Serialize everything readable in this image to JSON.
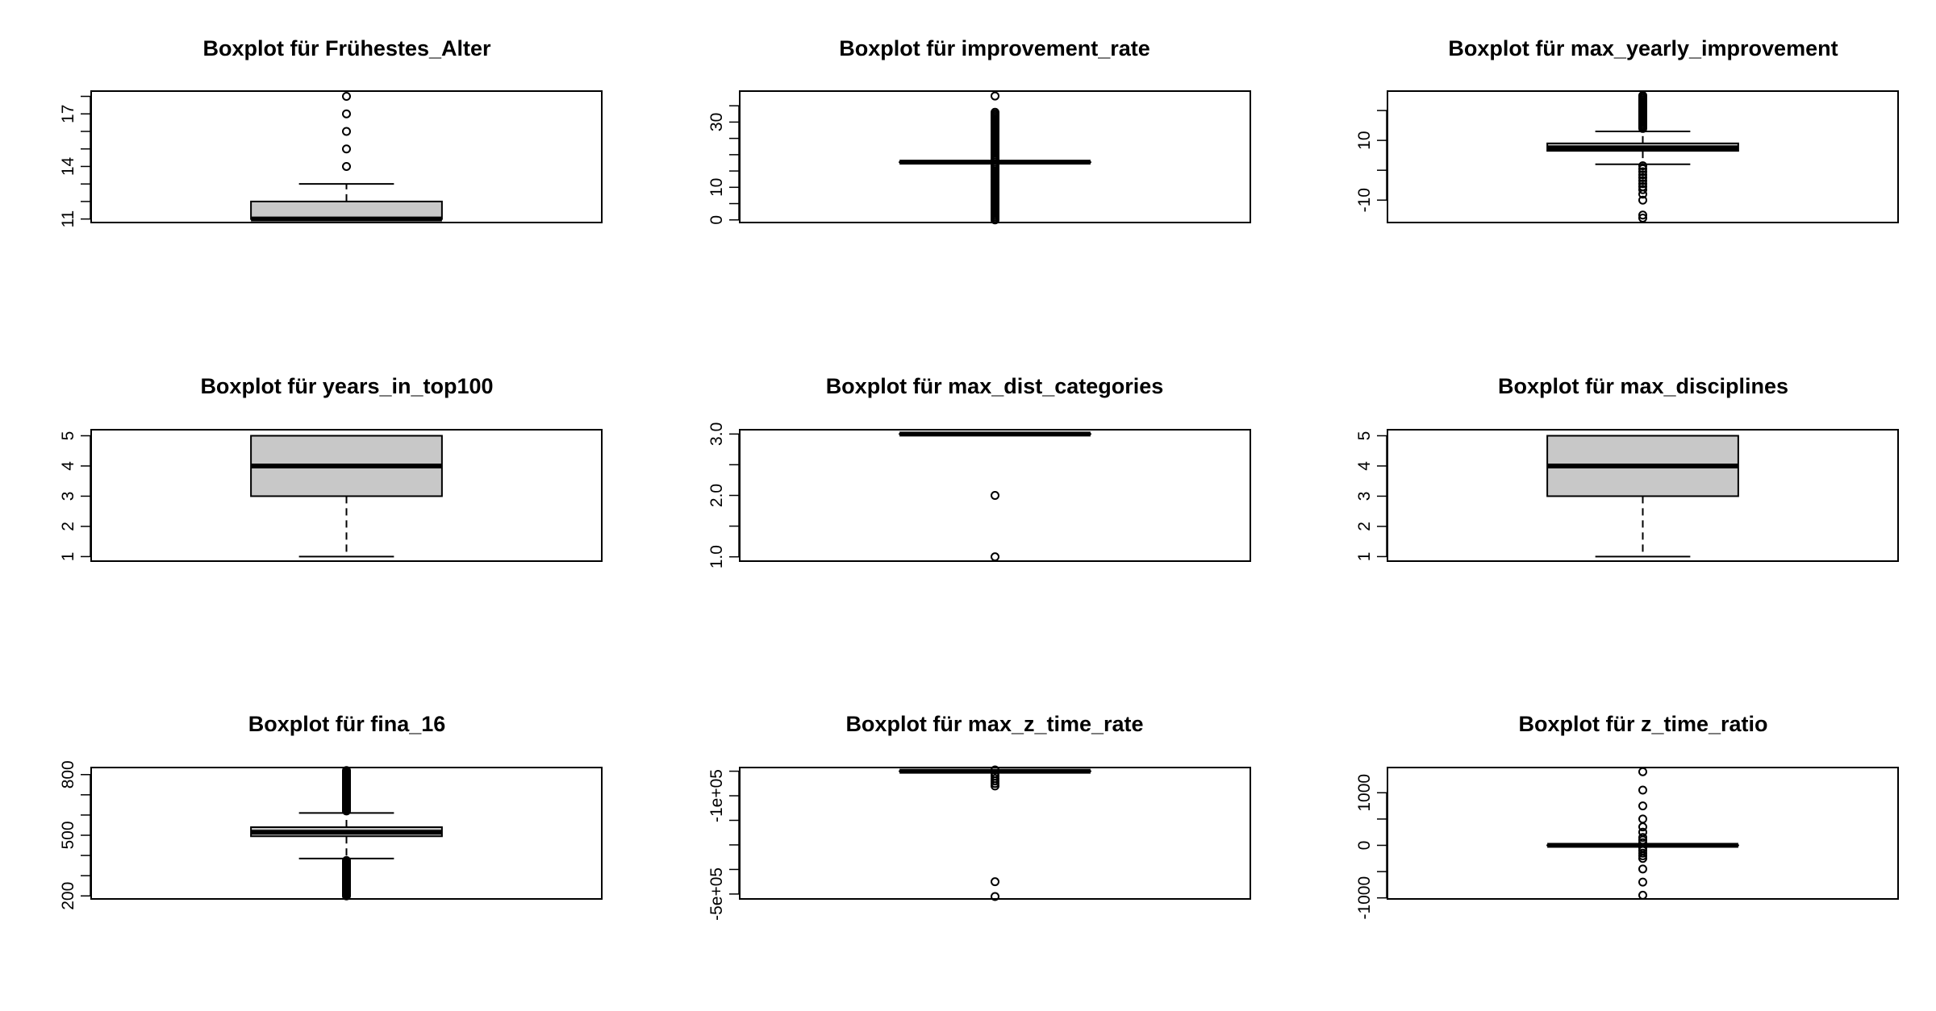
{
  "figure": {
    "background": "#ffffff",
    "box_fill": "#c8c8c8",
    "stroke": "#000000"
  },
  "chart_data": [
    {
      "type": "boxplot",
      "title": "Boxplot für Frühestes_Alter",
      "ylim": [
        10.8,
        18.3
      ],
      "ticks": [
        11,
        12,
        13,
        14,
        15,
        16,
        17,
        18
      ],
      "tick_labels": [
        "11",
        "",
        "",
        "14",
        "",
        "",
        "17",
        ""
      ],
      "stats": {
        "lower_whisker": 11,
        "q1": 11,
        "median": 11,
        "q3": 12,
        "upper_whisker": 13
      },
      "outliers": [
        14,
        15,
        16,
        17,
        18
      ]
    },
    {
      "type": "boxplot",
      "title": "Boxplot für improvement_rate",
      "ylim": [
        -0.8,
        39.5
      ],
      "ticks": [
        0,
        5,
        10,
        15,
        20,
        25,
        30,
        35
      ],
      "tick_labels": [
        "0",
        "",
        "10",
        "",
        "",
        "",
        "30",
        ""
      ],
      "stats": {
        "lower_whisker": 17.7,
        "q1": 17.7,
        "median": 17.7,
        "q3": 17.7,
        "upper_whisker": 17.7
      },
      "outliers": [
        0,
        0.5,
        1,
        1.5,
        2,
        2.5,
        3,
        3.5,
        4,
        4.5,
        5,
        5.5,
        6,
        6.5,
        7,
        7.5,
        8,
        8.5,
        9,
        9.5,
        10,
        10.5,
        11,
        11.5,
        12,
        12.5,
        13,
        13.5,
        14,
        14.5,
        15,
        15.5,
        16,
        16.5,
        17,
        18.5,
        19,
        19.5,
        20,
        20.5,
        21,
        21.5,
        22,
        22.5,
        23,
        23.5,
        24,
        24.5,
        25,
        25.5,
        26,
        26.5,
        27,
        27.5,
        28,
        28.5,
        29,
        29.5,
        30,
        30.5,
        31,
        31.5,
        32,
        32.5,
        33,
        38
      ]
    },
    {
      "type": "boxplot",
      "title": "Boxplot für max_yearly_improvement",
      "ylim": [
        -17.5,
        26.5
      ],
      "ticks": [
        -10,
        0,
        10,
        20
      ],
      "tick_labels": [
        "-10",
        "",
        "10",
        ""
      ],
      "stats": {
        "lower_whisker": 2,
        "q1": 6.5,
        "median": 7.5,
        "q3": 9,
        "upper_whisker": 13
      },
      "outliers": [
        -16,
        -15,
        -10,
        -8,
        -6.5,
        -5.5,
        -4.5,
        -3.5,
        -2.5,
        -1.5,
        -0.5,
        0.5,
        1.5,
        14,
        14.5,
        15,
        15.5,
        16,
        16.5,
        17,
        17.5,
        18,
        18.5,
        19,
        19.5,
        20,
        20.5,
        21,
        21.5,
        22,
        22.5,
        23,
        23.5,
        24,
        24.5,
        25
      ]
    },
    {
      "type": "boxplot",
      "title": "Boxplot für years_in_top100",
      "ylim": [
        0.85,
        5.2
      ],
      "ticks": [
        1,
        2,
        3,
        4,
        5
      ],
      "tick_labels": [
        "1",
        "2",
        "3",
        "4",
        "5"
      ],
      "stats": {
        "lower_whisker": 1,
        "q1": 3,
        "median": 4,
        "q3": 5,
        "upper_whisker": 5
      },
      "outliers": []
    },
    {
      "type": "boxplot",
      "title": "Boxplot für max_dist_categories",
      "ylim": [
        0.93,
        3.07
      ],
      "ticks": [
        1,
        1.5,
        2,
        2.5,
        3
      ],
      "tick_labels": [
        "1.0",
        "",
        "2.0",
        "",
        "3.0"
      ],
      "stats": {
        "lower_whisker": 3,
        "q1": 3,
        "median": 3,
        "q3": 3,
        "upper_whisker": 3
      },
      "outliers": [
        1,
        2
      ]
    },
    {
      "type": "boxplot",
      "title": "Boxplot für max_disciplines",
      "ylim": [
        0.85,
        5.2
      ],
      "ticks": [
        1,
        2,
        3,
        4,
        5
      ],
      "tick_labels": [
        "1",
        "2",
        "3",
        "4",
        "5"
      ],
      "stats": {
        "lower_whisker": 1,
        "q1": 3,
        "median": 4,
        "q3": 5,
        "upper_whisker": 5
      },
      "outliers": []
    },
    {
      "type": "boxplot",
      "title": "Boxplot für fina_16",
      "ylim": [
        185,
        835
      ],
      "ticks": [
        200,
        300,
        400,
        500,
        600,
        700,
        800
      ],
      "tick_labels": [
        "200",
        "",
        "",
        "500",
        "",
        "",
        "800"
      ],
      "stats": {
        "lower_whisker": 385,
        "q1": 495,
        "median": 515,
        "q3": 540,
        "upper_whisker": 610
      },
      "outliers": [
        200,
        205,
        210,
        215,
        220,
        225,
        230,
        235,
        240,
        245,
        250,
        255,
        260,
        265,
        270,
        275,
        280,
        285,
        290,
        295,
        300,
        305,
        310,
        315,
        320,
        325,
        330,
        335,
        340,
        345,
        350,
        355,
        360,
        365,
        370,
        375,
        620,
        625,
        630,
        635,
        640,
        645,
        650,
        655,
        660,
        665,
        670,
        675,
        680,
        685,
        690,
        695,
        700,
        705,
        710,
        715,
        720,
        725,
        730,
        735,
        740,
        745,
        750,
        755,
        760,
        765,
        770,
        775,
        780,
        785,
        790,
        795,
        800,
        805,
        810,
        815,
        820
      ]
    },
    {
      "type": "boxplot",
      "title": "Boxplot für max_z_time_rate",
      "ylim": [
        -520000,
        15000
      ],
      "ticks": [
        -500000,
        -400000,
        -300000,
        -200000,
        -100000,
        0
      ],
      "tick_labels": [
        "-5e+05",
        "",
        "",
        "",
        "-1e+05",
        ""
      ],
      "stats": {
        "lower_whisker": 0,
        "q1": 0,
        "median": 0,
        "q3": 0,
        "upper_whisker": 0
      },
      "outliers": [
        -450000,
        -510000,
        -60000,
        -50000,
        -40000,
        -30000,
        -20000,
        -10000,
        5000
      ]
    },
    {
      "type": "boxplot",
      "title": "Boxplot für z_time_ratio",
      "ylim": [
        -1020,
        1480
      ],
      "ticks": [
        -1000,
        -500,
        0,
        500,
        1000
      ],
      "tick_labels": [
        "-1000",
        "",
        "0",
        "",
        "1000"
      ],
      "stats": {
        "lower_whisker": 0,
        "q1": 0,
        "median": 0,
        "q3": 0,
        "upper_whisker": 0
      },
      "outliers": [
        -950,
        -700,
        -450,
        -250,
        -200,
        -150,
        -100,
        -50,
        50,
        100,
        150,
        250,
        350,
        500,
        750,
        1050,
        1400
      ]
    }
  ]
}
